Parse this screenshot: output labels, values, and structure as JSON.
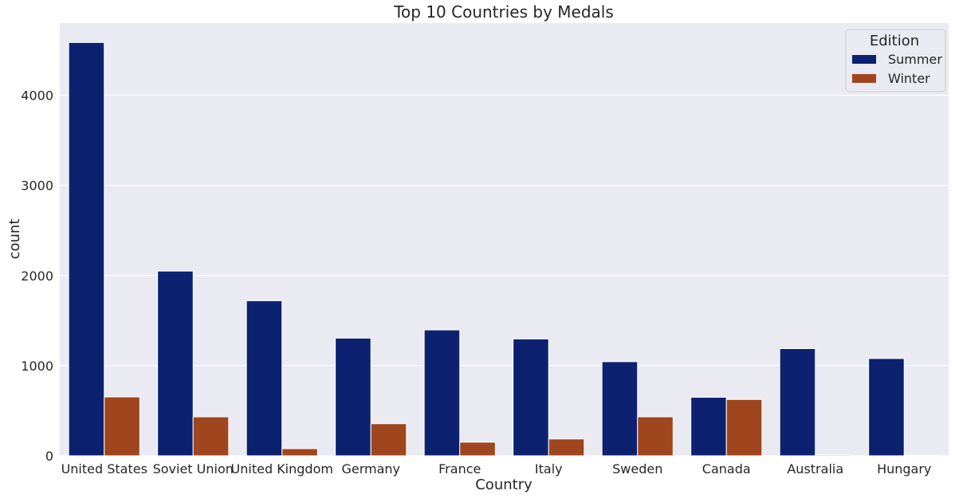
{
  "chart_data": {
    "type": "bar",
    "title": "Top 10 Countries by Medals",
    "xlabel": "Country",
    "ylabel": "count",
    "categories": [
      "United States",
      "Soviet Union",
      "United Kingdom",
      "Germany",
      "France",
      "Italy",
      "Sweden",
      "Canada",
      "Australia",
      "Hungary"
    ],
    "series": [
      {
        "name": "Summer",
        "color": "#0c2270",
        "values": [
          4585,
          2049,
          1720,
          1305,
          1396,
          1296,
          1044,
          649,
          1189,
          1079
        ]
      },
      {
        "name": "Winter",
        "color": "#a0461f",
        "values": [
          653,
          432,
          79,
          356,
          151,
          187,
          432,
          625,
          10,
          5
        ]
      }
    ],
    "ylim": [
      0,
      4800
    ],
    "yticks": [
      0,
      1000,
      2000,
      3000,
      4000
    ],
    "grid": true,
    "legend": {
      "title": "Edition",
      "placement": "top-right"
    }
  }
}
